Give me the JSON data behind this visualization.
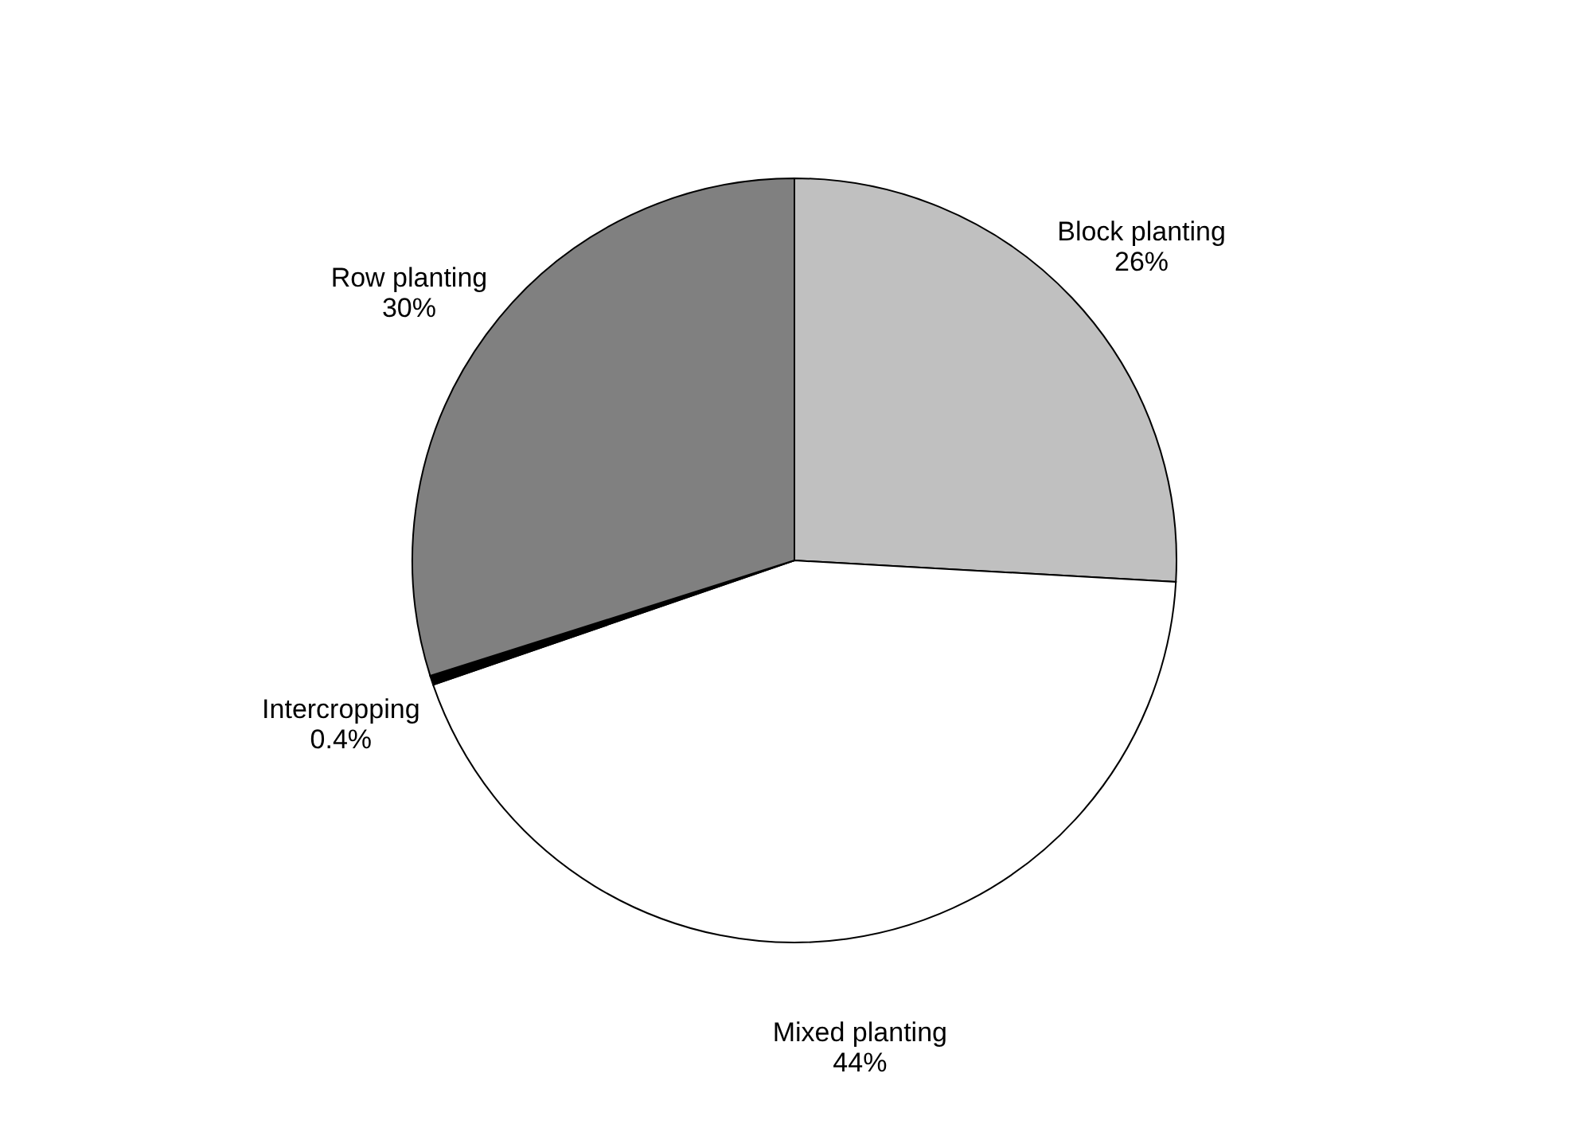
{
  "chart_data": {
    "type": "pie",
    "categories": [
      "Block planting",
      "Mixed planting",
      "Intercropping",
      "Row planting"
    ],
    "values": [
      26,
      44,
      0.4,
      30
    ],
    "value_labels": [
      "26%",
      "44%",
      "0.4%",
      "30%"
    ],
    "colors": [
      "#c0c0c0",
      "#ffffff",
      "#000000",
      "#808080"
    ],
    "legend": false
  }
}
